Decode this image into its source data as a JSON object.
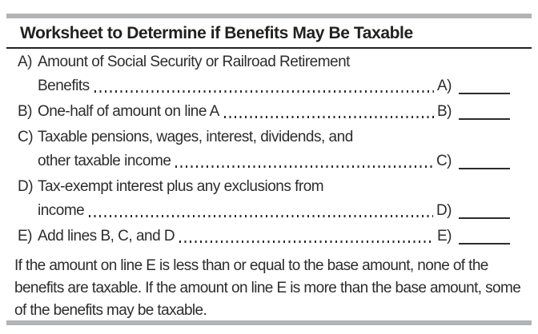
{
  "title": "Worksheet to Determine if Benefits May Be Taxable",
  "colors": {
    "bar_gray": "#b1b3b6",
    "rule_black": "#232020",
    "text": "#2e2c2b"
  },
  "worksheet": {
    "rows": [
      {
        "letter": "A)",
        "lines": [
          "Amount of Social Security or Railroad Retirement",
          "Benefits"
        ],
        "answer_label": "A)",
        "answer_value": ""
      },
      {
        "letter": "B)",
        "lines": [
          "One-half of amount on line A"
        ],
        "answer_label": "B)",
        "answer_value": ""
      },
      {
        "letter": "C)",
        "lines": [
          "Taxable pensions, wages, interest, dividends, and",
          "other taxable income"
        ],
        "answer_label": "C)",
        "answer_value": ""
      },
      {
        "letter": "D)",
        "lines": [
          "Tax-exempt interest plus any exclusions from",
          "income"
        ],
        "answer_label": "D)",
        "answer_value": ""
      },
      {
        "letter": "E)",
        "lines": [
          "Add lines B, C, and D"
        ],
        "answer_label": "E)",
        "answer_value": ""
      }
    ]
  },
  "footer": "If the amount on line E is less than or equal to the base amount, none of the benefits are taxable. If the amount on line E is more than the base amount, some of the benefits may be taxable."
}
